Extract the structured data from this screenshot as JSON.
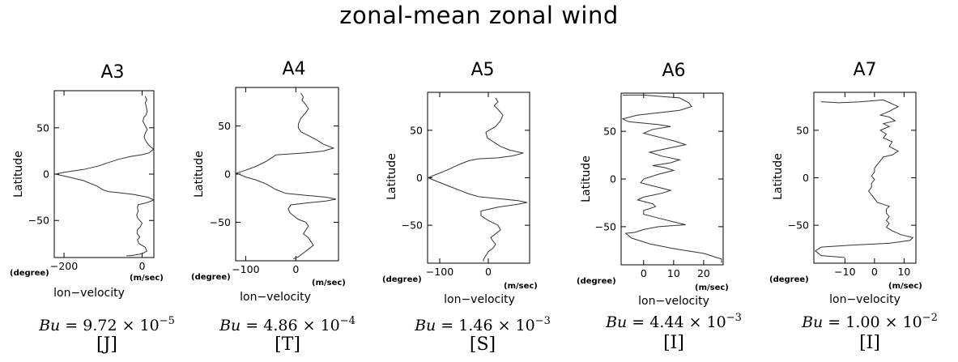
{
  "figure": {
    "title": "zonal-mean zonal wind"
  },
  "chart_data": [
    {
      "type": "line",
      "title": "A3",
      "xlabel": "lon−velocity",
      "ylabel": "Latitude",
      "xunit": "(m/sec)",
      "yunit": "(degree)",
      "xlim": [
        -225,
        30
      ],
      "ylim": [
        -90,
        90
      ],
      "xticks": [
        -200,
        0
      ],
      "xtick_labels": [
        "−200",
        "0"
      ],
      "yticks": [
        50,
        0,
        -50
      ],
      "ytick_labels": [
        "50",
        "0",
        "−50"
      ],
      "bu_mantissa": "9.72",
      "bu_exponent": "−5",
      "label": "[J]",
      "profile": [
        [
          8,
          84
        ],
        [
          12,
          80
        ],
        [
          8,
          77
        ],
        [
          11,
          72
        ],
        [
          13,
          68
        ],
        [
          10,
          64
        ],
        [
          4,
          61
        ],
        [
          2,
          57
        ],
        [
          7,
          53
        ],
        [
          13,
          48
        ],
        [
          8,
          44
        ],
        [
          5,
          40
        ],
        [
          8,
          37
        ],
        [
          12,
          34
        ],
        [
          20,
          30
        ],
        [
          29,
          27
        ],
        [
          18,
          23
        ],
        [
          0,
          21
        ],
        [
          -30,
          19
        ],
        [
          -60,
          16
        ],
        [
          -90,
          12
        ],
        [
          -110,
          9
        ],
        [
          -150,
          5
        ],
        [
          -200,
          2
        ],
        [
          -222,
          0
        ],
        [
          -190,
          -3
        ],
        [
          -150,
          -7
        ],
        [
          -115,
          -13
        ],
        [
          -100,
          -17
        ],
        [
          -85,
          -19
        ],
        [
          -60,
          -20
        ],
        [
          -20,
          -22
        ],
        [
          15,
          -25
        ],
        [
          30,
          -28
        ],
        [
          10,
          -31
        ],
        [
          -10,
          -33
        ],
        [
          -12,
          -36
        ],
        [
          -10,
          -40
        ],
        [
          -14,
          -44
        ],
        [
          -12,
          -47
        ],
        [
          -6,
          -50
        ],
        [
          0,
          -53
        ],
        [
          -5,
          -57
        ],
        [
          -12,
          -60
        ],
        [
          -13,
          -64
        ],
        [
          -6,
          -68
        ],
        [
          -12,
          -71
        ],
        [
          -8,
          -75
        ],
        [
          8,
          -79
        ],
        [
          12,
          -83
        ],
        [
          0,
          -86
        ],
        [
          -30,
          -88
        ],
        [
          -40,
          -88
        ]
      ]
    },
    {
      "type": "line",
      "title": "A4",
      "xlabel": "lon−velocity",
      "ylabel": "Latitude",
      "xunit": "(m/sec)",
      "yunit": "(degree)",
      "xlim": [
        -120,
        85
      ],
      "ylim": [
        -90,
        90
      ],
      "xticks": [
        -100,
        0
      ],
      "xtick_labels": [
        "−100",
        "0"
      ],
      "yticks": [
        50,
        0,
        -50
      ],
      "ytick_labels": [
        "50",
        "0",
        "−50"
      ],
      "bu_mantissa": "4.86",
      "bu_exponent": "−4",
      "label": "[T]",
      "profile": [
        [
          10,
          84
        ],
        [
          15,
          80
        ],
        [
          12,
          77
        ],
        [
          20,
          72
        ],
        [
          25,
          68
        ],
        [
          20,
          64
        ],
        [
          10,
          58
        ],
        [
          5,
          52
        ],
        [
          5,
          48
        ],
        [
          10,
          44
        ],
        [
          25,
          40
        ],
        [
          40,
          36
        ],
        [
          55,
          31
        ],
        [
          75,
          27
        ],
        [
          55,
          24
        ],
        [
          20,
          22
        ],
        [
          -10,
          21
        ],
        [
          -40,
          20
        ],
        [
          -45,
          18
        ],
        [
          -60,
          13
        ],
        [
          -80,
          8
        ],
        [
          -100,
          4
        ],
        [
          -118,
          1
        ],
        [
          -100,
          -3
        ],
        [
          -80,
          -6
        ],
        [
          -60,
          -10
        ],
        [
          -40,
          -16
        ],
        [
          -20,
          -20
        ],
        [
          20,
          -22
        ],
        [
          60,
          -24
        ],
        [
          80,
          -26
        ],
        [
          60,
          -28
        ],
        [
          20,
          -30
        ],
        [
          -10,
          -32
        ],
        [
          -15,
          -36
        ],
        [
          -12,
          -40
        ],
        [
          -5,
          -43
        ],
        [
          5,
          -47
        ],
        [
          20,
          -50
        ],
        [
          25,
          -54
        ],
        [
          20,
          -58
        ],
        [
          15,
          -62
        ],
        [
          25,
          -66
        ],
        [
          30,
          -70
        ],
        [
          35,
          -74
        ],
        [
          25,
          -78
        ],
        [
          15,
          -82
        ],
        [
          5,
          -86
        ],
        [
          -5,
          -88
        ]
      ]
    },
    {
      "type": "line",
      "title": "A5",
      "xlabel": "lon−velocity",
      "ylabel": "Latitude",
      "xunit": "(m/sec)",
      "yunit": "(degree)",
      "xlim": [
        -125,
        85
      ],
      "ylim": [
        -90,
        90
      ],
      "xticks": [
        -100,
        0
      ],
      "xtick_labels": [
        "−100",
        "0"
      ],
      "yticks": [
        50,
        0,
        -50
      ],
      "ytick_labels": [
        "50",
        "0",
        "−50"
      ],
      "bu_mantissa": "1.46",
      "bu_exponent": "−3",
      "label": "[S]",
      "profile": [
        [
          15,
          84
        ],
        [
          20,
          80
        ],
        [
          12,
          76
        ],
        [
          20,
          72
        ],
        [
          30,
          66
        ],
        [
          25,
          60
        ],
        [
          15,
          54
        ],
        [
          -5,
          48
        ],
        [
          -2,
          42
        ],
        [
          10,
          38
        ],
        [
          25,
          33
        ],
        [
          45,
          29
        ],
        [
          72,
          26
        ],
        [
          50,
          23
        ],
        [
          20,
          21
        ],
        [
          -20,
          20
        ],
        [
          -40,
          18
        ],
        [
          -60,
          14
        ],
        [
          -85,
          8
        ],
        [
          -110,
          3
        ],
        [
          -124,
          0
        ],
        [
          -100,
          -5
        ],
        [
          -80,
          -9
        ],
        [
          -60,
          -13
        ],
        [
          -40,
          -17
        ],
        [
          -20,
          -20
        ],
        [
          20,
          -22
        ],
        [
          60,
          -24
        ],
        [
          80,
          -26
        ],
        [
          60,
          -28
        ],
        [
          20,
          -31
        ],
        [
          -15,
          -35
        ],
        [
          -15,
          -40
        ],
        [
          0,
          -45
        ],
        [
          20,
          -50
        ],
        [
          25,
          -55
        ],
        [
          15,
          -59
        ],
        [
          5,
          -63
        ],
        [
          10,
          -67
        ],
        [
          15,
          -70
        ],
        [
          10,
          -74
        ],
        [
          0,
          -78
        ],
        [
          -5,
          -82
        ],
        [
          -10,
          -86
        ],
        [
          -10,
          -88
        ]
      ]
    },
    {
      "type": "line",
      "title": "A6",
      "xlabel": "lon−velocity",
      "ylabel": "Latitude",
      "xunit": "(m/sec)",
      "yunit": "(degree)",
      "xlim": [
        -7.5,
        26.5
      ],
      "ylim": [
        -90,
        90
      ],
      "xticks": [
        0,
        10,
        20
      ],
      "xtick_labels": [
        "0",
        "10",
        "20"
      ],
      "yticks": [
        50,
        0,
        -50
      ],
      "ytick_labels": [
        "50",
        "0",
        "−50"
      ],
      "bu_mantissa": "4.44",
      "bu_exponent": "−3",
      "label": "[I]",
      "profile": [
        [
          -7,
          88
        ],
        [
          0,
          88
        ],
        [
          8,
          86
        ],
        [
          12,
          85
        ],
        [
          15,
          80
        ],
        [
          16,
          76
        ],
        [
          12,
          72
        ],
        [
          -2,
          67
        ],
        [
          -7,
          63
        ],
        [
          -5,
          60
        ],
        [
          5,
          57
        ],
        [
          9,
          55
        ],
        [
          3,
          52
        ],
        [
          0,
          48
        ],
        [
          5,
          44
        ],
        [
          10,
          40
        ],
        [
          14,
          36
        ],
        [
          8,
          32
        ],
        [
          2,
          28
        ],
        [
          6,
          24
        ],
        [
          12,
          20
        ],
        [
          9,
          17
        ],
        [
          3,
          14
        ],
        [
          7,
          12
        ],
        [
          10,
          9
        ],
        [
          5,
          5
        ],
        [
          0,
          0
        ],
        [
          -1,
          -4
        ],
        [
          4,
          -8
        ],
        [
          9,
          -12
        ],
        [
          6,
          -15
        ],
        [
          0,
          -19
        ],
        [
          -2,
          -22
        ],
        [
          3,
          -26
        ],
        [
          4,
          -29
        ],
        [
          0,
          -33
        ],
        [
          0,
          -37
        ],
        [
          5,
          -41
        ],
        [
          10,
          -45
        ],
        [
          14,
          -48
        ],
        [
          5,
          -50
        ],
        [
          0,
          -53
        ],
        [
          -3,
          -56
        ],
        [
          -6,
          -57
        ],
        [
          -4,
          -62
        ],
        [
          2,
          -68
        ],
        [
          10,
          -73
        ],
        [
          20,
          -78
        ],
        [
          26,
          -84
        ],
        [
          26,
          -88
        ]
      ]
    },
    {
      "type": "line",
      "title": "A7",
      "xlabel": "lon−velocity",
      "ylabel": "Latitude",
      "xunit": "(m/sec)",
      "yunit": "(degree)",
      "xlim": [
        -20.5,
        14
      ],
      "ylim": [
        -90,
        90
      ],
      "xticks": [
        -10,
        0,
        10
      ],
      "xtick_labels": [
        "−10",
        "0",
        "10"
      ],
      "yticks": [
        50,
        0,
        -50
      ],
      "ytick_labels": [
        "50",
        "0",
        "−50"
      ],
      "bu_mantissa": "1.00",
      "bu_exponent": "−2",
      "label": "[I]",
      "profile": [
        [
          -18,
          80
        ],
        [
          -12,
          79
        ],
        [
          -5,
          80
        ],
        [
          3,
          82
        ],
        [
          8,
          75
        ],
        [
          5,
          70
        ],
        [
          2,
          66
        ],
        [
          5,
          64
        ],
        [
          7,
          60
        ],
        [
          3,
          57
        ],
        [
          5,
          54
        ],
        [
          2,
          50
        ],
        [
          4,
          46
        ],
        [
          3,
          42
        ],
        [
          6,
          38
        ],
        [
          5,
          33
        ],
        [
          8,
          28
        ],
        [
          6,
          24
        ],
        [
          3,
          22
        ],
        [
          2,
          18
        ],
        [
          1,
          14
        ],
        [
          0,
          10
        ],
        [
          0,
          6
        ],
        [
          -1,
          2
        ],
        [
          0,
          -2
        ],
        [
          -1,
          -6
        ],
        [
          -1,
          -10
        ],
        [
          -2,
          -14
        ],
        [
          -1,
          -18
        ],
        [
          0,
          -22
        ],
        [
          1,
          -26
        ],
        [
          3,
          -28
        ],
        [
          5,
          -30
        ],
        [
          4,
          -33
        ],
        [
          4,
          -37
        ],
        [
          5,
          -41
        ],
        [
          4,
          -45
        ],
        [
          5,
          -48
        ],
        [
          4,
          -52
        ],
        [
          6,
          -56
        ],
        [
          9,
          -60
        ],
        [
          13,
          -63
        ],
        [
          12,
          -66
        ],
        [
          5,
          -69
        ],
        [
          -8,
          -71
        ],
        [
          -18,
          -73
        ],
        [
          -20,
          -77
        ],
        [
          -18,
          -82
        ],
        [
          -10,
          -84
        ]
      ]
    }
  ]
}
